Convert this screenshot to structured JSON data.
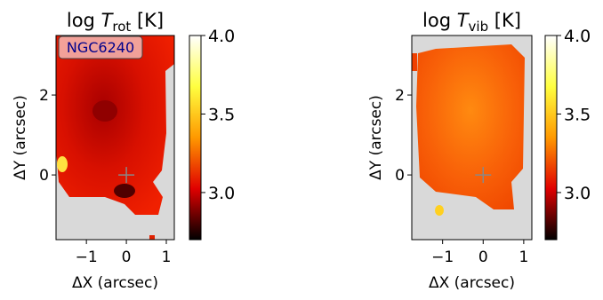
{
  "chart_data": [
    {
      "type": "image",
      "title": {
        "prefix": "log ",
        "symbol": "T",
        "subscript": "rot",
        "suffix": " [K]"
      },
      "xlabel": "ΔX (arcsec)",
      "ylabel": "ΔY (arcsec)",
      "xlim": [
        -1.76,
        1.2
      ],
      "ylim": [
        -1.62,
        3.49
      ],
      "xticks": [
        {
          "value": -1,
          "label": "−1"
        },
        0,
        1
      ],
      "yticks": [
        0,
        2
      ],
      "clim": [
        2.7,
        4.0
      ],
      "cticks": [
        {
          "value": 3.0,
          "label": "3.0"
        },
        {
          "value": 3.5,
          "label": "3.5"
        },
        {
          "value": 4.0,
          "label": "4.0"
        }
      ],
      "cmap_colors": [
        "#000000",
        "#e00000",
        "#ff9900",
        "#ffff40",
        "#ffffff"
      ],
      "annotation": "NGC6240",
      "cross": {
        "x": 0,
        "y": 0
      }
    },
    {
      "type": "image",
      "title": {
        "prefix": "log ",
        "symbol": "T",
        "subscript": "vib",
        "suffix": " [K]"
      },
      "xlabel": "ΔX (arcsec)",
      "ylabel": "ΔY (arcsec)",
      "xlim": [
        -1.76,
        1.2
      ],
      "ylim": [
        -1.62,
        3.49
      ],
      "xticks": [
        {
          "value": -1,
          "label": "−1"
        },
        0,
        1
      ],
      "yticks": [
        0,
        2
      ],
      "clim": [
        2.7,
        4.0
      ],
      "cticks": [
        {
          "value": 3.0,
          "label": "3.0"
        },
        {
          "value": 3.5,
          "label": "3.5"
        },
        {
          "value": 4.0,
          "label": "4.0"
        }
      ],
      "cmap_colors": [
        "#000000",
        "#e00000",
        "#ff9900",
        "#ffff40",
        "#ffffff"
      ],
      "cross": {
        "x": 0,
        "y": 0
      }
    }
  ]
}
